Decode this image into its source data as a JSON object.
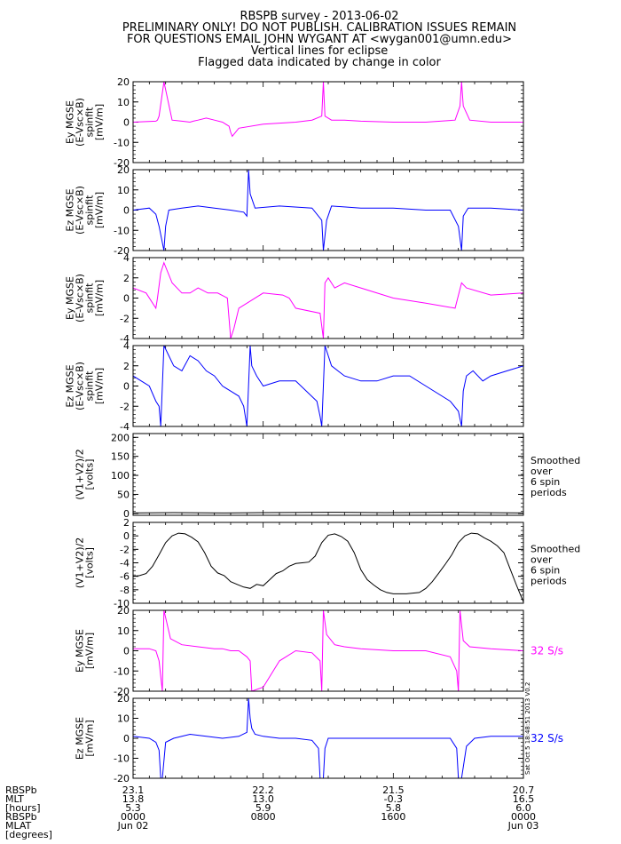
{
  "header": {
    "lines": [
      "RBSPB survey - 2013-06-02",
      "PRELIMINARY ONLY! DO NOT PUBLISH. CALIBRATION ISSUES REMAIN",
      "FOR QUESTIONS EMAIL JOHN WYGANT AT <wygan001@umn.edu>",
      "Vertical lines for eclipse",
      "Flagged data indicated by change in color"
    ]
  },
  "colors": {
    "magenta": "#ff00ff",
    "blue": "#0000ff",
    "black": "#000000"
  },
  "side_stamp": "Sat Oct 5 18:48:51 2013 V0.2",
  "chart_data": [
    {
      "type": "line",
      "panel": "ey-mgse-spinfit",
      "ylabel": [
        "Ey MGSE",
        "(E-Vsc×B)",
        "spinfit",
        "[mV/m]"
      ],
      "ylim": [
        -20,
        20
      ],
      "yticks": [
        "20",
        "10",
        "0",
        "-10",
        "-20"
      ],
      "color": "#ff00ff",
      "note": [],
      "series": [
        {
          "x": [
            0,
            1.4,
            1.5,
            1.6,
            1.9,
            2.4,
            3.0,
            3.5,
            3.7,
            4.0,
            4.5,
            5.0,
            5.5,
            5.9,
            6.0,
            6.1,
            6.5,
            8,
            10,
            11.0,
            11.6,
            11.7,
            11.8,
            12.2,
            13,
            14,
            16,
            18,
            19.8,
            20.1,
            20.2,
            20.3,
            20.7,
            22,
            24
          ],
          "y": [
            0,
            0.5,
            1,
            3,
            20,
            1,
            0.5,
            0,
            0.5,
            1,
            2,
            1,
            0,
            -2,
            -5,
            -7,
            -3,
            -1,
            0,
            1,
            3,
            20,
            3,
            1,
            1,
            0.5,
            0,
            0,
            1,
            8,
            20,
            8,
            1,
            0,
            0
          ]
        }
      ]
    },
    {
      "type": "line",
      "panel": "ez-mgse-spinfit",
      "ylabel": [
        "Ez MGSE",
        "(E-Vsc×B)",
        "spinfit",
        "[mV/m]"
      ],
      "ylim": [
        -20,
        20
      ],
      "yticks": [
        "20",
        "10",
        "0",
        "-10",
        "-20"
      ],
      "color": "#0000ff",
      "note": [],
      "series": [
        {
          "x": [
            0,
            1.0,
            1.4,
            1.6,
            1.9,
            2.0,
            2.2,
            3.0,
            4.0,
            5.0,
            6.0,
            6.8,
            7.0,
            7.1,
            7.2,
            7.5,
            9,
            11.0,
            11.6,
            11.7,
            11.9,
            12.2,
            14,
            16,
            18,
            19.5,
            20.0,
            20.2,
            20.3,
            20.6,
            22,
            24
          ],
          "y": [
            0,
            1,
            -2,
            -8,
            -20,
            -8,
            0,
            1,
            2,
            1,
            0,
            -1,
            -3,
            20,
            8,
            1,
            2,
            1,
            -5,
            -20,
            -5,
            2,
            1,
            1,
            0,
            0,
            -8,
            -20,
            -3,
            1,
            1,
            0
          ]
        }
      ]
    },
    {
      "type": "line",
      "panel": "ey-mgse-spinfit-zoom",
      "ylabel": [
        "Ey MGSE",
        "(E-Vsc×B)",
        "spinfit",
        "[mV/m]"
      ],
      "ylim": [
        -4,
        4
      ],
      "yticks": [
        "4",
        "2",
        "0",
        "-2",
        "-4"
      ],
      "color": "#ff00ff",
      "note": [],
      "series": [
        {
          "x": [
            0,
            0.8,
            1.4,
            1.5,
            1.7,
            1.9,
            2.4,
            3.0,
            3.5,
            4.0,
            4.6,
            5.2,
            5.8,
            6.0,
            6.2,
            6.5,
            8,
            9.2,
            9.6,
            10,
            11.5,
            11.7,
            11.8,
            12.0,
            12.4,
            13,
            14,
            16,
            18,
            19.8,
            20.2,
            20.5,
            22,
            24
          ],
          "y": [
            1,
            0.5,
            -1,
            0,
            2.5,
            3.5,
            1.5,
            0.5,
            0.5,
            1,
            0.5,
            0.5,
            0,
            -4,
            -3,
            -1,
            0.5,
            0.3,
            0,
            -1,
            -1.5,
            -4,
            1.5,
            2,
            1,
            1.5,
            1,
            0,
            -0.5,
            -1,
            1.5,
            1,
            0.3,
            0.5
          ]
        }
      ]
    },
    {
      "type": "line",
      "panel": "ez-mgse-spinfit-zoom",
      "ylabel": [
        "Ez MGSE",
        "(E-Vsc×B)",
        "spinfit",
        "[mV/m]"
      ],
      "ylim": [
        -4,
        4
      ],
      "yticks": [
        "4",
        "2",
        "0",
        "-2",
        "-4"
      ],
      "color": "#0000ff",
      "note": [],
      "series": [
        {
          "x": [
            0,
            0.5,
            1.0,
            1.4,
            1.6,
            1.7,
            1.9,
            2.2,
            2.5,
            3.0,
            3.5,
            4.0,
            4.5,
            5.0,
            5.5,
            6.0,
            6.5,
            6.8,
            7.0,
            7.2,
            7.3,
            7.6,
            8,
            9,
            10,
            11.3,
            11.5,
            11.6,
            11.8,
            12.2,
            13,
            14,
            15,
            16,
            17,
            18,
            19.5,
            20.0,
            20.2,
            20.3,
            20.5,
            20.9,
            21.5,
            22,
            23,
            24
          ],
          "y": [
            1,
            0.5,
            0,
            -1.5,
            -2,
            -4,
            4,
            3,
            2,
            1.5,
            3,
            2.5,
            1.5,
            1,
            0,
            -0.5,
            -1,
            -2,
            -4,
            4,
            2,
            1,
            0,
            0.5,
            0.5,
            -1.5,
            -3,
            -4,
            4,
            2,
            1,
            0.5,
            0.5,
            1,
            1,
            0,
            -1.5,
            -2.5,
            -4,
            -0.5,
            1,
            1.5,
            0.5,
            1,
            1.5,
            2
          ]
        }
      ]
    },
    {
      "type": "line",
      "panel": "v1-v2-sum-smoothed",
      "ylabel": [
        "(V1+V2)/2",
        "[volts]"
      ],
      "ylim": [
        -5,
        210
      ],
      "yticks": [
        "200",
        "150",
        "100",
        "50",
        "0"
      ],
      "ytick_values": [
        200,
        150,
        100,
        50,
        0
      ],
      "color": "#000000",
      "note": [
        "Smoothed",
        "over",
        "6 spin",
        "periods"
      ],
      "series": [
        {
          "x": [
            0,
            2.5,
            5.5,
            8,
            12,
            15.5,
            19.5,
            24
          ],
          "y": [
            1,
            2,
            1,
            2,
            3,
            2,
            3,
            1
          ]
        }
      ]
    },
    {
      "type": "line",
      "panel": "v1-v2-sum-smoothed-zoom",
      "ylabel": [
        "(V1+V2)/2",
        "[volts]"
      ],
      "ylim": [
        -10,
        2
      ],
      "yticks": [
        "2",
        "0",
        "-2",
        "-4",
        "-6",
        "-8",
        "-10"
      ],
      "ytick_values": [
        2,
        0,
        -2,
        -4,
        -6,
        -8,
        -10
      ],
      "color": "#000000",
      "note": [
        "Smoothed",
        "over",
        "6 spin",
        "periods"
      ],
      "series": [
        {
          "x": [
            0,
            0.4,
            0.8,
            1.2,
            1.6,
            2.0,
            2.4,
            2.8,
            3.2,
            3.6,
            4.0,
            4.4,
            4.8,
            5.2,
            5.6,
            6.0,
            6.4,
            6.8,
            7.2,
            7.6,
            8.0,
            8.4,
            8.8,
            9.2,
            9.6,
            10.0,
            10.4,
            10.8,
            11.2,
            11.6,
            12.0,
            12.4,
            12.8,
            13.2,
            13.6,
            14.0,
            14.4,
            14.8,
            15.2,
            15.6,
            16.0,
            16.4,
            16.8,
            17.2,
            17.6,
            18.0,
            18.4,
            18.8,
            19.2,
            19.6,
            20.0,
            20.4,
            20.8,
            21.2,
            21.6,
            22.0,
            22.4,
            22.8,
            23.2,
            23.6,
            24.0
          ],
          "y": [
            -6,
            -5.9,
            -5.6,
            -4.5,
            -2.8,
            -1.0,
            0.0,
            0.4,
            0.3,
            -0.2,
            -0.9,
            -2.5,
            -4.5,
            -5.5,
            -5.9,
            -6.8,
            -7.2,
            -7.6,
            -7.8,
            -7.2,
            -7.4,
            -6.5,
            -5.6,
            -5.2,
            -4.5,
            -4.1,
            -4.0,
            -3.9,
            -3.0,
            -1.0,
            0.1,
            0.3,
            -0.1,
            -0.8,
            -2.5,
            -5.0,
            -6.5,
            -7.3,
            -8.0,
            -8.4,
            -8.6,
            -8.6,
            -8.6,
            -8.5,
            -8.4,
            -7.8,
            -6.8,
            -5.5,
            -4.2,
            -2.8,
            -1.0,
            0.0,
            0.4,
            0.3,
            -0.3,
            -0.8,
            -1.5,
            -2.5,
            -5.0,
            -7.5,
            -9.8
          ]
        }
      ]
    },
    {
      "type": "line",
      "panel": "ey-mgse-32sps",
      "ylabel": [
        "Ey MGSE",
        "[mV/m]"
      ],
      "ylim": [
        -20,
        20
      ],
      "yticks": [
        "20",
        "10",
        "0",
        "-10",
        "-20"
      ],
      "color": "#ff00ff",
      "note": [
        "32 S/s"
      ],
      "series": [
        {
          "x": [
            0,
            1.0,
            1.4,
            1.6,
            1.8,
            1.9,
            2.3,
            3.0,
            4.0,
            5.0,
            5.5,
            6.0,
            6.5,
            7.0,
            7.2,
            7.3,
            8,
            9,
            10,
            11.0,
            11.5,
            11.6,
            11.7,
            11.9,
            12.4,
            13,
            14,
            16,
            18,
            19.5,
            19.9,
            20.0,
            20.1,
            20.3,
            20.7,
            22,
            24
          ],
          "y": [
            1,
            1,
            0,
            -5,
            -20,
            20,
            6,
            3,
            2,
            1,
            1,
            0,
            0,
            -3,
            -5,
            -20,
            -18,
            -5,
            0,
            -1,
            -5,
            -20,
            20,
            8,
            3,
            2,
            1,
            0,
            0,
            -3,
            -10,
            -20,
            20,
            5,
            2,
            1,
            0
          ]
        }
      ]
    },
    {
      "type": "line",
      "panel": "ez-mgse-32sps",
      "ylabel": [
        "Ez MGSE",
        "[mV/m]"
      ],
      "ylim": [
        -20,
        20
      ],
      "yticks": [
        "20",
        "10",
        "0",
        "-10",
        "-20"
      ],
      "color": "#0000ff",
      "note": [
        "32 S/s"
      ],
      "series": [
        {
          "x": [
            0,
            1.0,
            1.4,
            1.6,
            1.7,
            1.8,
            2.0,
            2.5,
            3.5,
            4.5,
            5.5,
            6.5,
            7.0,
            7.1,
            7.2,
            7.3,
            7.5,
            8,
            9,
            10,
            11.0,
            11.4,
            11.5,
            11.6,
            11.7,
            11.8,
            12.0,
            13,
            15,
            16.5,
            18,
            19.5,
            19.9,
            20.0,
            20.1,
            20.2,
            20.5,
            21,
            22,
            24
          ],
          "y": [
            1,
            0,
            -2,
            -6,
            -20,
            -20,
            -2,
            0,
            2,
            1,
            0,
            1,
            3,
            20,
            10,
            5,
            2,
            1,
            0,
            0,
            -1,
            -5,
            -20,
            -20,
            -20,
            -5,
            0,
            0,
            0,
            0,
            0,
            0,
            -5,
            -20,
            -20,
            -20,
            -4,
            0,
            1,
            1
          ]
        }
      ]
    }
  ],
  "xaxis": {
    "label_lines": [
      "RBSPb",
      "MLT",
      "[hours]",
      "RBSPb",
      "MLAT",
      "[degrees]"
    ],
    "ticks": [
      {
        "x": 0,
        "lines": [
          "23.1",
          "13.8",
          "5.3",
          "0000",
          "Jun 02"
        ]
      },
      {
        "x": 8,
        "lines": [
          "22.2",
          "13.0",
          "5.9",
          "0800",
          ""
        ]
      },
      {
        "x": 16,
        "lines": [
          "21.5",
          "-0.3",
          "5.8",
          "1600",
          ""
        ]
      },
      {
        "x": 24,
        "lines": [
          "20.7",
          "16.5",
          "6.0",
          "0000",
          "Jun 03"
        ]
      }
    ],
    "xlim": [
      0,
      24
    ]
  }
}
